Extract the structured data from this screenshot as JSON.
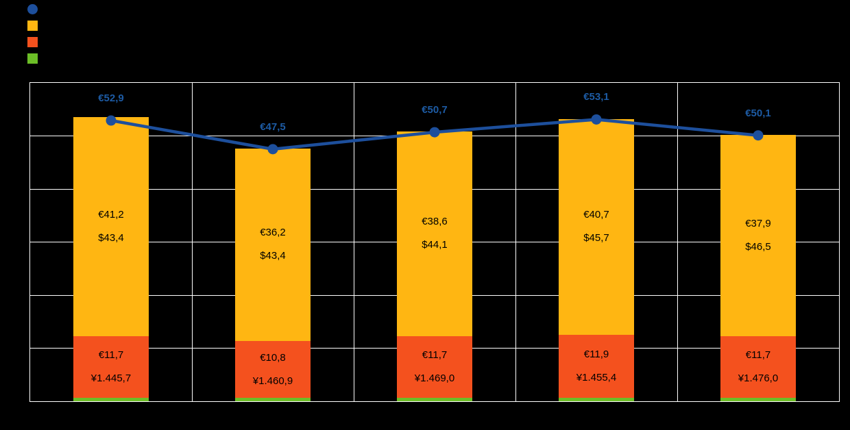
{
  "canvas": {
    "background": "#000000",
    "plot_background": "#000000",
    "grid_color": "#ffffff"
  },
  "legend": {
    "position": "top-left",
    "items": [
      {
        "id": "blue-line",
        "label": "",
        "color": "#1D4F9C",
        "shape": "circle"
      },
      {
        "id": "orange-bar",
        "label": "",
        "color": "#FFB612",
        "shape": "square"
      },
      {
        "id": "red-bar",
        "label": "",
        "color": "#F4511E",
        "shape": "square"
      },
      {
        "id": "green-bar",
        "label": "",
        "color": "#6CBE27",
        "shape": "square"
      }
    ]
  },
  "chart_data": {
    "type": "bar",
    "stacked": true,
    "stack_order": "bottom-to-top",
    "grid": true,
    "ylim": [
      0,
      60
    ],
    "ytick_step": 10,
    "categories": [
      "",
      "",
      "",
      "",
      ""
    ],
    "series": [
      {
        "id": "green",
        "color": "#6CBE27",
        "values": [
          0.6,
          0.6,
          0.6,
          0.6,
          0.6
        ],
        "labels": [
          [],
          [],
          [],
          [],
          []
        ]
      },
      {
        "id": "red",
        "color": "#F4511E",
        "values": [
          11.7,
          10.8,
          11.7,
          11.9,
          11.7
        ],
        "labels": [
          [
            "€11,7",
            "¥1.445,7"
          ],
          [
            "€10,8",
            "¥1.460,9"
          ],
          [
            "€11,7",
            "¥1.469,0"
          ],
          [
            "€11,9",
            "¥1.455,4"
          ],
          [
            "€11,7",
            "¥1.476,0"
          ]
        ]
      },
      {
        "id": "orange",
        "color": "#FFB612",
        "values": [
          41.2,
          36.2,
          38.6,
          40.7,
          37.9
        ],
        "labels": [
          [
            "€41,2",
            "$43,4"
          ],
          [
            "€36,2",
            "$43,4"
          ],
          [
            "€38,6",
            "$44,1"
          ],
          [
            "€40,7",
            "$45,7"
          ],
          [
            "€37,9",
            "$46,5"
          ]
        ]
      }
    ],
    "line": {
      "id": "total-line",
      "color": "#1D4F9C",
      "label_color": "#1D5BA4",
      "values": [
        52.9,
        47.5,
        50.7,
        53.1,
        50.1
      ],
      "labels": [
        "€52,9",
        "€47,5",
        "€50,7",
        "€53,1",
        "€50,1"
      ]
    }
  }
}
